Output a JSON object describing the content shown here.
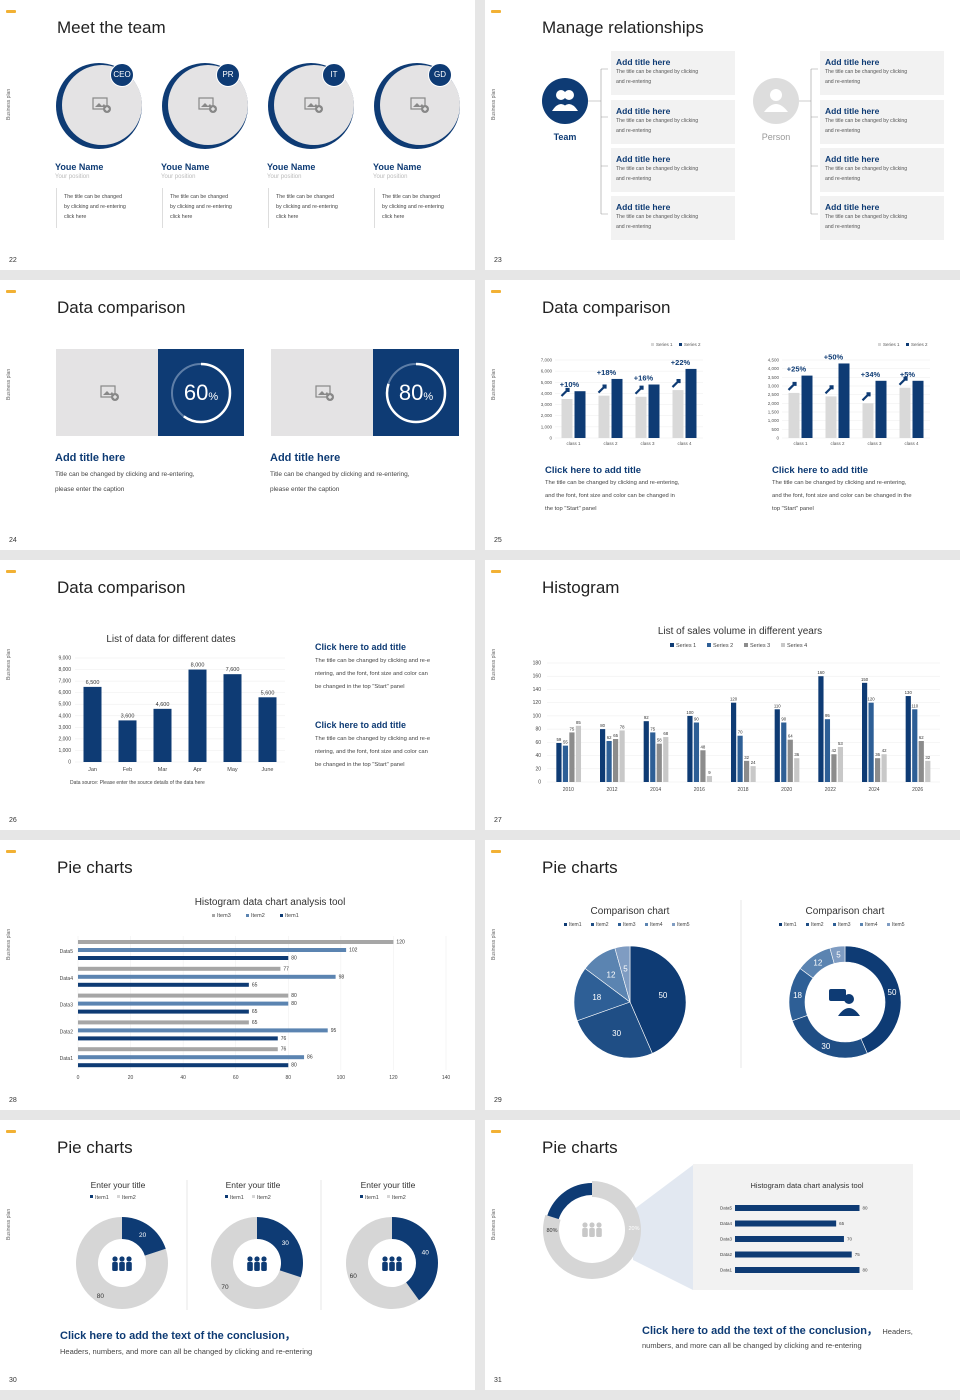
{
  "side_label": "Business plan",
  "s22": {
    "title": "Meet the team",
    "num": "22",
    "members": [
      {
        "badge": "CEO",
        "name": "Youe Name",
        "position": "Your position",
        "desc": [
          "The title can be changed",
          "by clicking and re-entering",
          "click here"
        ]
      },
      {
        "badge": "PR",
        "name": "Youe Name",
        "position": "Your position",
        "desc": [
          "The title can be changed",
          "by clicking and re-entering",
          "click here"
        ]
      },
      {
        "badge": "IT",
        "name": "Youe Name",
        "position": "Your position",
        "desc": [
          "The title can be changed",
          "by clicking and re-entering",
          "click here"
        ]
      },
      {
        "badge": "GD",
        "name": "Youe Name",
        "position": "Your position",
        "desc": [
          "The title can be changed",
          "by clicking and re-entering",
          "click here"
        ]
      }
    ]
  },
  "s23": {
    "title": "Manage relationships",
    "num": "23",
    "team_label": "Team",
    "person_label": "Person",
    "card_title": "Add title here",
    "card_l1": "The title can be changed by clicking",
    "card_l2": "and re-entering"
  },
  "s24": {
    "title": "Data comparison",
    "num": "24",
    "items": [
      {
        "value": "60",
        "unit": "%",
        "pct": 0.6,
        "heading": "Add title here",
        "l1": "Title can be changed by clicking and re-entering,",
        "l2": "please enter the caption"
      },
      {
        "value": "80",
        "unit": "%",
        "pct": 0.8,
        "heading": "Add title here",
        "l1": "Title can be changed by clicking and re-entering,",
        "l2": "please enter the caption"
      }
    ]
  },
  "s25": {
    "title": "Data comparison",
    "num": "25",
    "legend1": "Series 1",
    "legend2": "Series 2",
    "captions": [
      {
        "heading": "Click here to add title",
        "l1": "The title can be changed by clicking and re-entering,",
        "l2": "and the font, font size and color can be changed in",
        "l3": "the top \"Start\" panel"
      },
      {
        "heading": "Click here to add title",
        "l1": "The title can be changed by clicking and re-entering,",
        "l2": "and the font, font size and color can be changed in the",
        "l3": "top \"Start\" panel"
      }
    ]
  },
  "s26": {
    "title": "Data comparison",
    "num": "26",
    "captions": [
      {
        "heading": "Click here to add title",
        "l1": "The title can be changed by clicking and re-e",
        "l2": "ntering, and the font, font size and color can",
        "l3": "be changed in the top \"Start\" panel"
      },
      {
        "heading": "Click here to add title",
        "l1": "The title can be changed by clicking and re-e",
        "l2": "ntering, and the font, font size and color can",
        "l3": "be changed in the top \"Start\" panel"
      }
    ]
  },
  "s27": {
    "title": "Histogram",
    "num": "27"
  },
  "s28": {
    "title": "Pie charts",
    "num": "28"
  },
  "s29": {
    "title": "Pie charts",
    "num": "29"
  },
  "s30": {
    "title": "Pie charts",
    "num": "30",
    "conclusion": "Click here to add the text of the conclusion，",
    "sub": "Headers, numbers, and more can all be changed by clicking and re-entering"
  },
  "s31": {
    "title": "Pie charts",
    "num": "31",
    "conclusion": "Click here to add the text of the conclusion，",
    "conclusion_tail": "Headers,",
    "sub": "numbers, and more can all be changed by clicking and re-entering",
    "pct1": "80%",
    "pct2": "20%"
  },
  "colors": {
    "navy": "#0e3b74",
    "mid": "#2e5f96",
    "steel": "#5b84b1",
    "light": "#d6d6d6",
    "gray": "#a6a6a6"
  },
  "chart_data": [
    {
      "id": "s25-left",
      "type": "bar",
      "categories": [
        "class 1",
        "class 2",
        "class 3",
        "class 4"
      ],
      "series": [
        {
          "name": "Series 1",
          "values": [
            3500,
            3800,
            3700,
            4300
          ]
        },
        {
          "name": "Series 2",
          "values": [
            4200,
            5300,
            4800,
            6200
          ]
        }
      ],
      "annotations": [
        "+10%",
        "+18%",
        "+16%",
        "+22%"
      ],
      "ylim": [
        0,
        7000
      ],
      "yticks": [
        "0",
        "1,000",
        "2,000",
        "3,000",
        "4,000",
        "5,000",
        "6,000",
        "7,000"
      ]
    },
    {
      "id": "s25-right",
      "type": "bar",
      "categories": [
        "class 1",
        "class 2",
        "class 3",
        "class 4"
      ],
      "series": [
        {
          "name": "Series 1",
          "values": [
            2600,
            2400,
            2000,
            2900
          ]
        },
        {
          "name": "Series 2",
          "values": [
            3600,
            4300,
            3300,
            3300
          ]
        }
      ],
      "annotations": [
        "+25%",
        "+50%",
        "+34%",
        "+5%"
      ],
      "ylim": [
        0,
        4500
      ],
      "yticks": [
        "0",
        "500",
        "1,000",
        "1,500",
        "2,000",
        "2,500",
        "3,000",
        "3,500",
        "4,000",
        "4,500"
      ]
    },
    {
      "id": "s26",
      "type": "bar",
      "title": "List of data for different dates",
      "categories": [
        "Jan",
        "Feb",
        "Mar",
        "Apr",
        "May",
        "June"
      ],
      "values": [
        6500,
        3600,
        4600,
        8000,
        7600,
        5600
      ],
      "labels": [
        "6,500",
        "3,600",
        "4,600",
        "8,000",
        "7,600",
        "5,600"
      ],
      "ylim": [
        0,
        9000
      ],
      "yticks": [
        "0",
        "1,000",
        "2,000",
        "3,000",
        "4,000",
        "5,000",
        "6,000",
        "7,000",
        "8,000",
        "9,000"
      ],
      "note": "Data source: Please enter the source details of the data here"
    },
    {
      "id": "s27",
      "type": "bar",
      "title": "List of sales volume in different years",
      "categories": [
        "2010",
        "2012",
        "2014",
        "2016",
        "2018",
        "2020",
        "2022",
        "2024",
        "2026"
      ],
      "series": [
        {
          "name": "Series 1",
          "values": [
            59,
            80,
            92,
            100,
            120,
            110,
            160,
            150,
            130
          ]
        },
        {
          "name": "Series 2",
          "values": [
            55,
            62,
            75,
            90,
            70,
            90,
            95,
            120,
            110
          ]
        },
        {
          "name": "Series 3",
          "values": [
            75,
            65,
            58,
            48,
            32,
            64,
            42,
            36,
            62
          ]
        },
        {
          "name": "Series 4",
          "values": [
            85,
            78,
            68,
            9,
            24,
            36,
            53,
            42,
            32
          ]
        }
      ],
      "ylim": [
        0,
        180
      ],
      "yticks": [
        "0",
        "20",
        "40",
        "60",
        "80",
        "100",
        "120",
        "140",
        "160",
        "180"
      ]
    },
    {
      "id": "s28",
      "type": "bar",
      "orientation": "horizontal",
      "title": "Histogram data chart analysis tool",
      "categories": [
        "Data1",
        "Data2",
        "Data3",
        "Data4",
        "Data5"
      ],
      "series": [
        {
          "name": "Item3",
          "values": [
            76,
            65,
            80,
            77,
            120
          ]
        },
        {
          "name": "Item2",
          "values": [
            86,
            95,
            80,
            98,
            102
          ]
        },
        {
          "name": "Item1",
          "values": [
            80,
            76,
            65,
            65,
            80
          ]
        }
      ],
      "xlim": [
        0,
        140
      ],
      "xticks": [
        "0",
        "20",
        "40",
        "60",
        "80",
        "100",
        "120",
        "140"
      ]
    },
    {
      "id": "s29-pie",
      "type": "pie",
      "title": "Comparison chart",
      "categories": [
        "Item1",
        "Item2",
        "Item3",
        "Item4",
        "Item5"
      ],
      "values": [
        50,
        30,
        18,
        12,
        5
      ]
    },
    {
      "id": "s29-donut",
      "type": "pie",
      "title": "Comparison chart",
      "categories": [
        "Item1",
        "Item2",
        "Item3",
        "Item4",
        "Item5"
      ],
      "values": [
        50,
        30,
        18,
        12,
        5
      ]
    },
    {
      "id": "s30-1",
      "type": "pie",
      "title": "Enter your title",
      "categories": [
        "Item1",
        "Item2"
      ],
      "values": [
        20,
        80
      ]
    },
    {
      "id": "s30-2",
      "type": "pie",
      "title": "Enter your title",
      "categories": [
        "Item1",
        "Item2"
      ],
      "values": [
        30,
        70
      ]
    },
    {
      "id": "s30-3",
      "type": "pie",
      "title": "Enter your title",
      "categories": [
        "Item1",
        "Item2"
      ],
      "values": [
        40,
        60
      ]
    },
    {
      "id": "s31-donut",
      "type": "pie",
      "values": [
        80,
        20
      ],
      "labels": [
        "80%",
        "20%"
      ]
    },
    {
      "id": "s31-bars",
      "type": "bar",
      "orientation": "horizontal",
      "title": "Histogram data chart analysis tool",
      "categories": [
        "Data1",
        "Data2",
        "Data3",
        "Data4",
        "Data5"
      ],
      "values": [
        80,
        75,
        70,
        65,
        80
      ]
    }
  ]
}
